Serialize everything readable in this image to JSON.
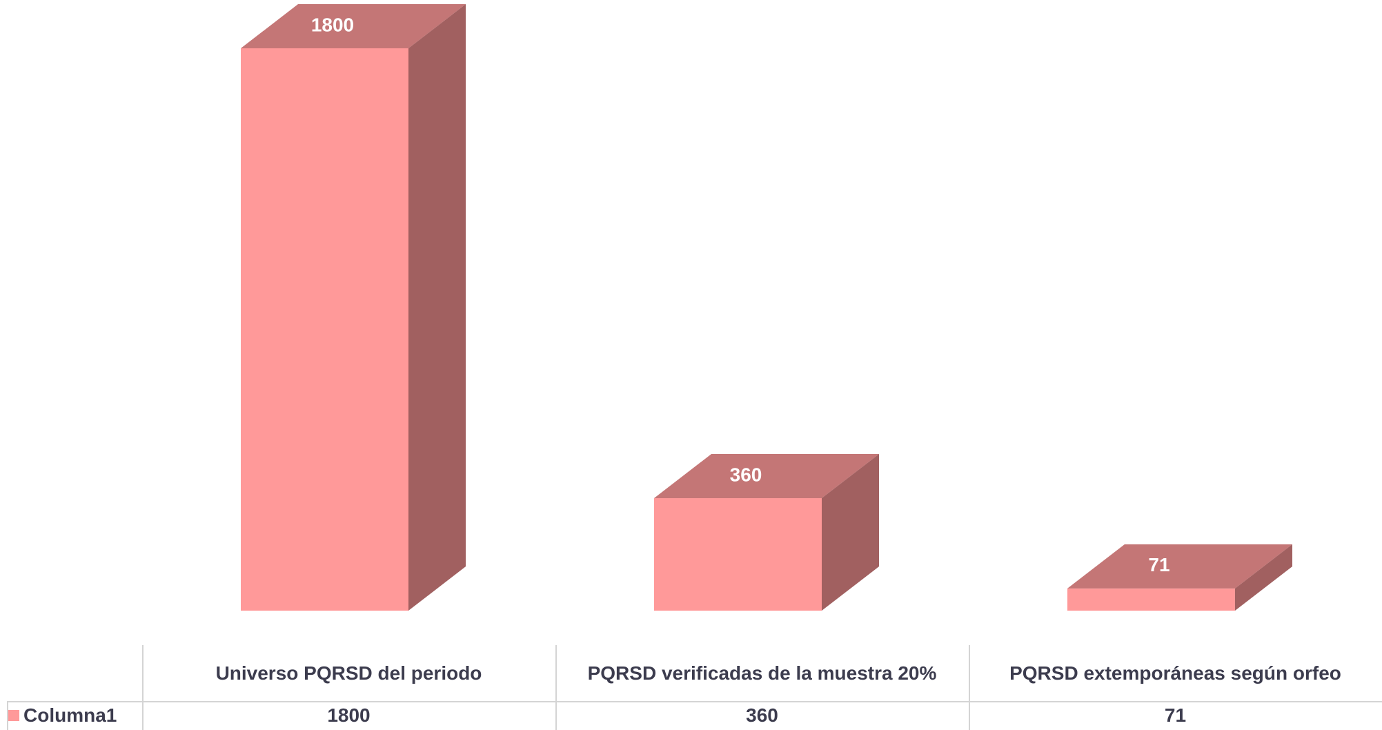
{
  "chart_data": {
    "type": "bar3d",
    "categories": [
      "Universo PQRSD del periodo",
      "PQRSD verificadas de la muestra 20%",
      "PQRSD extemporáneas según orfeo"
    ],
    "series": [
      {
        "name": "Columna1",
        "color": "#ff9999",
        "values": [
          1800,
          360,
          71
        ]
      }
    ],
    "data_table": true
  }
}
